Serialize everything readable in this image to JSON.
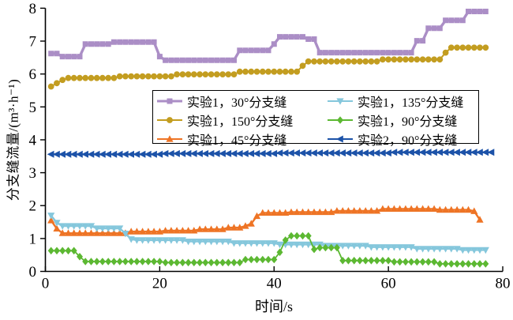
{
  "chart_data": {
    "type": "line",
    "title": "",
    "xlabel": "时间/s",
    "ylabel": "分支缝流量/(m³·h⁻¹)",
    "xlim": [
      0,
      80
    ],
    "ylim": [
      0,
      8
    ],
    "x_ticks": [
      0,
      20,
      40,
      60,
      80
    ],
    "y_ticks": [
      0,
      1,
      2,
      3,
      4,
      5,
      6,
      7,
      8
    ],
    "grid": false,
    "legend_position": "inside upper center, 2 columns",
    "x_start": 1,
    "x_step": 1,
    "series": [
      {
        "name": "实验1，30°分支缝",
        "color": "#ab8ec6",
        "marker": "square",
        "values": [
          6.62,
          6.62,
          6.53,
          6.53,
          6.53,
          6.53,
          6.91,
          6.91,
          6.91,
          6.91,
          6.91,
          6.97,
          6.97,
          6.97,
          6.97,
          6.97,
          6.97,
          6.97,
          6.97,
          6.53,
          6.42,
          6.42,
          6.42,
          6.42,
          6.42,
          6.42,
          6.42,
          6.42,
          6.42,
          6.42,
          6.42,
          6.42,
          6.42,
          6.72,
          6.72,
          6.72,
          6.72,
          6.72,
          6.72,
          6.91,
          7.13,
          7.13,
          7.13,
          7.13,
          7.13,
          7.06,
          7.06,
          6.65,
          6.65,
          6.65,
          6.65,
          6.65,
          6.65,
          6.65,
          6.65,
          6.65,
          6.65,
          6.65,
          6.65,
          6.65,
          6.65,
          6.65,
          6.65,
          6.65,
          7.01,
          7.01,
          7.39,
          7.39,
          7.39,
          7.63,
          7.63,
          7.63,
          7.63,
          7.9,
          7.9,
          7.9,
          7.9
        ]
      },
      {
        "name": "实验1，150°分支缝",
        "color": "#c39d20",
        "marker": "circle",
        "values": [
          5.62,
          5.72,
          5.82,
          5.88,
          5.88,
          5.88,
          5.88,
          5.88,
          5.88,
          5.88,
          5.88,
          5.88,
          5.93,
          5.93,
          5.93,
          5.93,
          5.93,
          5.93,
          5.93,
          5.93,
          5.93,
          5.93,
          5.99,
          5.99,
          5.99,
          5.99,
          5.99,
          5.99,
          5.99,
          5.99,
          5.99,
          5.99,
          5.99,
          6.07,
          6.07,
          6.07,
          6.07,
          6.07,
          6.07,
          6.07,
          6.07,
          6.07,
          6.07,
          6.07,
          6.25,
          6.38,
          6.38,
          6.38,
          6.38,
          6.38,
          6.38,
          6.38,
          6.38,
          6.38,
          6.38,
          6.38,
          6.38,
          6.38,
          6.44,
          6.44,
          6.44,
          6.44,
          6.44,
          6.44,
          6.44,
          6.44,
          6.44,
          6.44,
          6.44,
          6.65,
          6.8,
          6.8,
          6.8,
          6.8,
          6.8,
          6.8,
          6.8
        ]
      },
      {
        "name": "实验1，45°分支缝",
        "color": "#ee7425",
        "marker": "triangle-up",
        "values": [
          1.55,
          1.3,
          1.16,
          1.16,
          1.16,
          1.16,
          1.16,
          1.16,
          1.16,
          1.16,
          1.16,
          1.16,
          1.16,
          1.16,
          1.21,
          1.21,
          1.21,
          1.21,
          1.21,
          1.21,
          1.24,
          1.24,
          1.24,
          1.24,
          1.24,
          1.24,
          1.28,
          1.28,
          1.28,
          1.28,
          1.28,
          1.33,
          1.33,
          1.33,
          1.38,
          1.45,
          1.68,
          1.78,
          1.78,
          1.78,
          1.78,
          1.78,
          1.8,
          1.8,
          1.8,
          1.8,
          1.8,
          1.8,
          1.8,
          1.8,
          1.84,
          1.84,
          1.84,
          1.84,
          1.84,
          1.84,
          1.84,
          1.84,
          1.9,
          1.9,
          1.9,
          1.9,
          1.9,
          1.9,
          1.9,
          1.9,
          1.9,
          1.9,
          1.87,
          1.87,
          1.87,
          1.87,
          1.87,
          1.87,
          1.83,
          1.57
        ]
      },
      {
        "name": "实验1，135°分支缝",
        "color": "#85c7dc",
        "marker": "triangle-down",
        "values": [
          1.7,
          1.48,
          1.38,
          1.38,
          1.38,
          1.38,
          1.38,
          1.38,
          1.31,
          1.31,
          1.31,
          1.31,
          1.31,
          1.15,
          0.98,
          0.95,
          0.95,
          0.95,
          0.95,
          0.95,
          0.95,
          0.95,
          0.95,
          0.95,
          0.91,
          0.91,
          0.91,
          0.91,
          0.91,
          0.91,
          0.91,
          0.91,
          0.86,
          0.86,
          0.86,
          0.86,
          0.86,
          0.86,
          0.86,
          0.86,
          0.82,
          0.82,
          0.82,
          0.82,
          0.82,
          0.82,
          0.82,
          0.82,
          0.78,
          0.78,
          0.78,
          0.78,
          0.78,
          0.78,
          0.78,
          0.78,
          0.74,
          0.74,
          0.74,
          0.74,
          0.74,
          0.74,
          0.74,
          0.74,
          0.69,
          0.69,
          0.69,
          0.69,
          0.69,
          0.69,
          0.69,
          0.69,
          0.65,
          0.65,
          0.65,
          0.65,
          0.65
        ]
      },
      {
        "name": "实验1，90°分支缝",
        "color": "#5cb832",
        "marker": "diamond",
        "values": [
          0.63,
          0.63,
          0.63,
          0.63,
          0.63,
          0.45,
          0.3,
          0.3,
          0.3,
          0.3,
          0.3,
          0.3,
          0.3,
          0.3,
          0.3,
          0.3,
          0.3,
          0.3,
          0.3,
          0.3,
          0.27,
          0.27,
          0.27,
          0.27,
          0.27,
          0.27,
          0.27,
          0.27,
          0.27,
          0.27,
          0.27,
          0.27,
          0.27,
          0.27,
          0.36,
          0.36,
          0.36,
          0.36,
          0.36,
          0.36,
          0.58,
          0.95,
          1.08,
          1.08,
          1.08,
          1.08,
          0.67,
          0.72,
          0.72,
          0.72,
          0.72,
          0.33,
          0.33,
          0.33,
          0.33,
          0.33,
          0.33,
          0.33,
          0.33,
          0.33,
          0.29,
          0.29,
          0.29,
          0.29,
          0.29,
          0.29,
          0.29,
          0.29,
          0.23,
          0.23,
          0.23,
          0.23,
          0.23,
          0.23,
          0.23,
          0.23,
          0.23
        ]
      },
      {
        "name": "实验2，90°分支缝",
        "color": "#1c52a8",
        "marker": "triangle-left",
        "values": [
          3.56,
          3.56,
          3.56,
          3.56,
          3.56,
          3.56,
          3.56,
          3.56,
          3.56,
          3.56,
          3.56,
          3.56,
          3.56,
          3.56,
          3.56,
          3.56,
          3.56,
          3.56,
          3.56,
          3.56,
          3.58,
          3.58,
          3.58,
          3.58,
          3.58,
          3.58,
          3.58,
          3.58,
          3.58,
          3.58,
          3.58,
          3.58,
          3.58,
          3.58,
          3.58,
          3.58,
          3.58,
          3.58,
          3.58,
          3.58,
          3.6,
          3.6,
          3.6,
          3.6,
          3.6,
          3.6,
          3.6,
          3.6,
          3.6,
          3.6,
          3.6,
          3.6,
          3.6,
          3.6,
          3.6,
          3.6,
          3.6,
          3.6,
          3.6,
          3.6,
          3.62,
          3.62,
          3.62,
          3.62,
          3.62,
          3.62,
          3.62,
          3.62,
          3.62,
          3.62,
          3.62,
          3.62,
          3.62,
          3.62,
          3.62,
          3.62,
          3.62,
          3.62
        ]
      }
    ]
  }
}
